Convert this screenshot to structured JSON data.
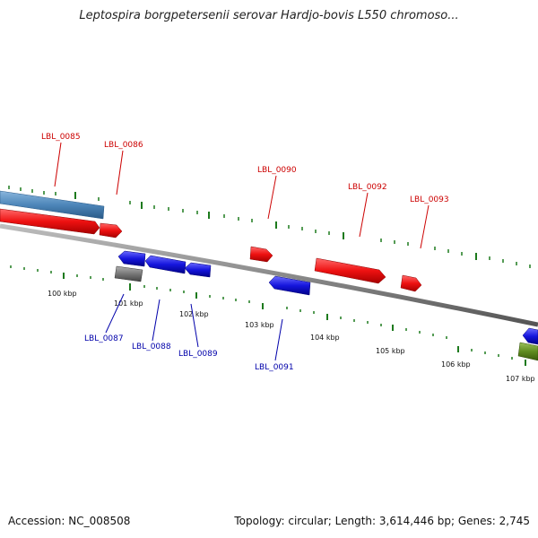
{
  "title": "Leptospira borgpetersenii serovar Hardjo-bovis L550 chromoso...",
  "footer": {
    "accession": "Accession: NC_008508",
    "summary": "Topology: circular; Length: 3,614,446 bp; Genes: 2,745"
  },
  "colors": {
    "forward_gene": "#ee1111",
    "reverse_gene": "#1515dd",
    "rna_or_other": "#777777",
    "blue_region": "#4d86b9",
    "green_region": "#5f8c1f",
    "backbone": "#8a8a8a",
    "ticks": "#1d7a1d",
    "label_forward": "#cc0000",
    "label_reverse": "#0000aa"
  },
  "scale_labels": [
    "100 kbp",
    "101 kbp",
    "102 kbp",
    "103 kbp",
    "104 kbp",
    "105 kbp",
    "106 kbp",
    "107 kbp"
  ],
  "forward_labels": [
    "LBL_0085",
    "LBL_0086",
    "LBL_0090",
    "LBL_0092",
    "LBL_0093"
  ],
  "reverse_labels": [
    "LBL_0087",
    "LBL_0088",
    "LBL_0089",
    "LBL_0091"
  ]
}
